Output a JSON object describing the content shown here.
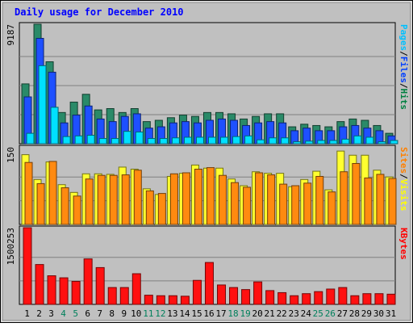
{
  "chart_data": {
    "type": "bar",
    "title": "Daily usage for December 2010",
    "days": [
      "1",
      "2",
      "3",
      "4",
      "5",
      "6",
      "7",
      "8",
      "9",
      "10",
      "11",
      "12",
      "13",
      "14",
      "15",
      "16",
      "17",
      "18",
      "19",
      "20",
      "21",
      "22",
      "23",
      "24",
      "25",
      "26",
      "27",
      "28",
      "29",
      "30",
      "31"
    ],
    "weekend_days": [
      "4",
      "5",
      "11",
      "12",
      "18",
      "19",
      "25",
      "26"
    ],
    "panels": [
      {
        "id": "hits",
        "ymax": 9187,
        "ymax_label": "9187",
        "side_label_parts": [
          {
            "text": "Pages",
            "color": "#00c0ff"
          },
          {
            "text": "/",
            "color": "#000000"
          },
          {
            "text": "Files",
            "color": "#0040ff"
          },
          {
            "text": "/",
            "color": "#000000"
          },
          {
            "text": "Hits",
            "color": "#008040"
          }
        ],
        "series": [
          {
            "name": "Hits",
            "color": "#2a8a68",
            "values": [
              4600,
              9187,
              6300,
              2400,
              3200,
              3800,
              2600,
              2700,
              2400,
              2700,
              1700,
              1800,
              2000,
              2200,
              2100,
              2400,
              2400,
              2300,
              1900,
              2100,
              2300,
              2300,
              1300,
              1500,
              1400,
              1300,
              1700,
              1900,
              1800,
              1400,
              800
            ]
          },
          {
            "name": "Files",
            "color": "#1e50ff",
            "values": [
              3600,
              8100,
              5500,
              1600,
              2200,
              2900,
              1900,
              1700,
              2100,
              2300,
              1200,
              1300,
              1600,
              1700,
              1600,
              1800,
              1900,
              1800,
              1400,
              1600,
              1700,
              1600,
              1000,
              1200,
              1000,
              1000,
              1300,
              1400,
              1200,
              1000,
              600
            ]
          },
          {
            "name": "Pages",
            "color": "#00e0ff",
            "values": [
              800,
              6000,
              2800,
              550,
              600,
              650,
              400,
              400,
              950,
              900,
              400,
              400,
              450,
              500,
              500,
              500,
              500,
              550,
              600,
              300,
              450,
              450,
              150,
              200,
              250,
              250,
              350,
              600,
              500,
              150,
              250
            ]
          }
        ]
      },
      {
        "id": "visits",
        "ymax": 150,
        "ymax_label": "150",
        "side_label_parts": [
          {
            "text": "Sites",
            "color": "#ff8000"
          },
          {
            "text": "/",
            "color": "#000000"
          },
          {
            "text": "Visits",
            "color": "#ffff00"
          }
        ],
        "series": [
          {
            "name": "Visits",
            "color": "#ffff30",
            "values": [
              135,
              87,
              121,
              77,
              62,
              98,
              98,
              97,
              111,
              107,
              69,
              58,
              93,
              99,
              115,
              109,
              109,
              88,
              75,
              102,
              99,
              99,
              73,
              87,
              103,
              67,
              142,
              134,
              134,
              105,
              92
            ]
          },
          {
            "name": "Sites",
            "color": "#ff8a10",
            "values": [
              120,
              79,
              122,
              71,
              55,
              88,
              95,
              95,
              96,
              105,
              65,
              60,
              98,
              100,
              107,
              110,
              95,
              81,
              72,
              100,
              96,
              78,
              75,
              80,
              93,
              63,
              102,
              118,
              90,
              97,
              89
            ]
          }
        ]
      },
      {
        "id": "kbytes",
        "ymax": 1500253,
        "ymax_label": "1500253",
        "side_label_parts": [
          {
            "text": "KBytes",
            "color": "#ff0000"
          }
        ],
        "series": [
          {
            "name": "KBytes",
            "color": "#ff1010",
            "values": [
              1500253,
              780000,
              560000,
              520000,
              450000,
              890000,
              720000,
              330000,
              330000,
              600000,
              180000,
              170000,
              170000,
              160000,
              470000,
              820000,
              380000,
              330000,
              290000,
              440000,
              270000,
              230000,
              170000,
              210000,
              250000,
              300000,
              330000,
              170000,
              210000,
              210000,
              200000
            ]
          }
        ]
      }
    ]
  }
}
